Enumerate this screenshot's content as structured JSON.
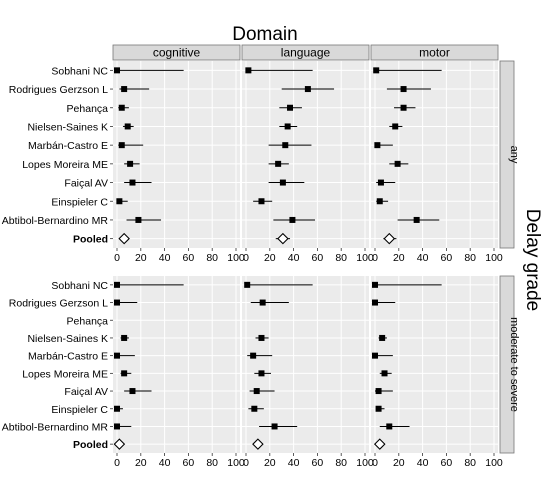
{
  "chart_data": {
    "type": "forest",
    "title": "Domain",
    "facet_row_title": "Delay grade",
    "columns": [
      "cognitive",
      "language",
      "motor"
    ],
    "rows": [
      "any",
      "moderate to severe"
    ],
    "studies": [
      "Sobhani NC",
      "Rodrigues Gerzson L",
      "Pehança",
      "Nielsen-Saines K",
      "Marbán-Castro E",
      "Lopes Moreira ME",
      "Faiçal AV",
      "Einspieler C",
      "Abtibol-Bernardino MR"
    ],
    "pooled_label": "Pooled",
    "xlim": [
      0,
      100
    ],
    "xticks": [
      0,
      20,
      40,
      60,
      80,
      100
    ],
    "xtick_labels": [
      "0",
      "20",
      "40",
      "60",
      "80",
      "100"
    ],
    "panels": [
      {
        "row": "any",
        "column": "cognitive",
        "points": [
          {
            "study": "Sobhani NC",
            "est": 0,
            "lo": 0,
            "hi": 56
          },
          {
            "study": "Rodrigues Gerzson L",
            "est": 6,
            "lo": 2,
            "hi": 27
          },
          {
            "study": "Pehança",
            "est": 4,
            "lo": 1,
            "hi": 10
          },
          {
            "study": "Nielsen-Saines K",
            "est": 9,
            "lo": 5,
            "hi": 14
          },
          {
            "study": "Marbán-Castro E",
            "est": 4,
            "lo": 1,
            "hi": 22
          },
          {
            "study": "Lopes Moreira ME",
            "est": 11,
            "lo": 6,
            "hi": 19
          },
          {
            "study": "Faiçal AV",
            "est": 13,
            "lo": 6,
            "hi": 29
          },
          {
            "study": "Einspieler C",
            "est": 2,
            "lo": 0,
            "hi": 9
          },
          {
            "study": "Abtibol-Bernardino MR",
            "est": 18,
            "lo": 8,
            "hi": 37
          }
        ],
        "pooled": {
          "est": 6,
          "lo": 3,
          "hi": 10
        }
      },
      {
        "row": "any",
        "column": "language",
        "points": [
          {
            "study": "Sobhani NC",
            "est": 2,
            "lo": 0,
            "hi": 56
          },
          {
            "study": "Rodrigues Gerzson L",
            "est": 52,
            "lo": 30,
            "hi": 74
          },
          {
            "study": "Pehança",
            "est": 37,
            "lo": 28,
            "hi": 47
          },
          {
            "study": "Nielsen-Saines K",
            "est": 35,
            "lo": 28,
            "hi": 43
          },
          {
            "study": "Marbán-Castro E",
            "est": 33,
            "lo": 19,
            "hi": 55
          },
          {
            "study": "Lopes Moreira ME",
            "est": 27,
            "lo": 19,
            "hi": 36
          },
          {
            "study": "Faiçal AV",
            "est": 31,
            "lo": 19,
            "hi": 49
          },
          {
            "study": "Einspieler C",
            "est": 13,
            "lo": 6,
            "hi": 22
          },
          {
            "study": "Abtibol-Bernardino MR",
            "est": 39,
            "lo": 23,
            "hi": 58
          }
        ],
        "pooled": {
          "est": 31,
          "lo": 25,
          "hi": 37
        }
      },
      {
        "row": "any",
        "column": "motor",
        "points": [
          {
            "study": "Sobhani NC",
            "est": 1,
            "lo": 0,
            "hi": 56
          },
          {
            "study": "Rodrigues Gerzson L",
            "est": 24,
            "lo": 10,
            "hi": 47
          },
          {
            "study": "Pehança",
            "est": 24,
            "lo": 16,
            "hi": 34
          },
          {
            "study": "Nielsen-Saines K",
            "est": 17,
            "lo": 12,
            "hi": 23
          },
          {
            "study": "Marbán-Castro E",
            "est": 2,
            "lo": 0,
            "hi": 15
          },
          {
            "study": "Lopes Moreira ME",
            "est": 19,
            "lo": 12,
            "hi": 28
          },
          {
            "study": "Faiçal AV",
            "est": 5,
            "lo": 1,
            "hi": 17
          },
          {
            "study": "Einspieler C",
            "est": 4,
            "lo": 1,
            "hi": 11
          },
          {
            "study": "Abtibol-Bernardino MR",
            "est": 35,
            "lo": 19,
            "hi": 54
          }
        ],
        "pooled": {
          "est": 12,
          "lo": 7,
          "hi": 18
        }
      },
      {
        "row": "moderate to severe",
        "column": "cognitive",
        "points": [
          {
            "study": "Sobhani NC",
            "est": 0,
            "lo": 0,
            "hi": 56
          },
          {
            "study": "Rodrigues Gerzson L",
            "est": 0,
            "lo": 0,
            "hi": 17
          },
          {
            "study": "Nielsen-Saines K",
            "est": 6,
            "lo": 3,
            "hi": 10
          },
          {
            "study": "Marbán-Castro E",
            "est": 0,
            "lo": 0,
            "hi": 15
          },
          {
            "study": "Lopes Moreira ME",
            "est": 6,
            "lo": 3,
            "hi": 12
          },
          {
            "study": "Faiçal AV",
            "est": 13,
            "lo": 6,
            "hi": 29
          },
          {
            "study": "Einspieler C",
            "est": 0,
            "lo": 0,
            "hi": 5
          },
          {
            "study": "Abtibol-Bernardino MR",
            "est": 0,
            "lo": 0,
            "hi": 12
          }
        ],
        "pooled": {
          "est": 2,
          "lo": 0,
          "hi": 5
        }
      },
      {
        "row": "moderate to severe",
        "column": "language",
        "points": [
          {
            "study": "Sobhani NC",
            "est": 1,
            "lo": 0,
            "hi": 56
          },
          {
            "study": "Rodrigues Gerzson L",
            "est": 14,
            "lo": 4,
            "hi": 36
          },
          {
            "study": "Nielsen-Saines K",
            "est": 13,
            "lo": 8,
            "hi": 19
          },
          {
            "study": "Marbán-Castro E",
            "est": 6,
            "lo": 1,
            "hi": 22
          },
          {
            "study": "Lopes Moreira ME",
            "est": 13,
            "lo": 7,
            "hi": 21
          },
          {
            "study": "Faiçal AV",
            "est": 9,
            "lo": 3,
            "hi": 24
          },
          {
            "study": "Einspieler C",
            "est": 7,
            "lo": 2,
            "hi": 15
          },
          {
            "study": "Abtibol-Bernardino MR",
            "est": 24,
            "lo": 11,
            "hi": 43
          }
        ],
        "pooled": {
          "est": 10,
          "lo": 7,
          "hi": 14
        }
      },
      {
        "row": "moderate to severe",
        "column": "motor",
        "points": [
          {
            "study": "Sobhani NC",
            "est": 0,
            "lo": 0,
            "hi": 56
          },
          {
            "study": "Rodrigues Gerzson L",
            "est": 0,
            "lo": 0,
            "hi": 17
          },
          {
            "study": "Nielsen-Saines K",
            "est": 6,
            "lo": 3,
            "hi": 10
          },
          {
            "study": "Marbán-Castro E",
            "est": 0,
            "lo": 0,
            "hi": 15
          },
          {
            "study": "Lopes Moreira ME",
            "est": 8,
            "lo": 4,
            "hi": 14
          },
          {
            "study": "Faiçal AV",
            "est": 3,
            "lo": 0,
            "hi": 15
          },
          {
            "study": "Einspieler C",
            "est": 3,
            "lo": 1,
            "hi": 8
          },
          {
            "study": "Abtibol-Bernardino MR",
            "est": 12,
            "lo": 4,
            "hi": 29
          }
        ],
        "pooled": {
          "est": 4,
          "lo": 1,
          "hi": 7
        }
      }
    ],
    "grid": true,
    "colors": {
      "panel_bg": "#ebebeb",
      "grid": "#ffffff",
      "strip": "#d9d9d9",
      "marks": "#000000",
      "text": "#000000"
    }
  }
}
